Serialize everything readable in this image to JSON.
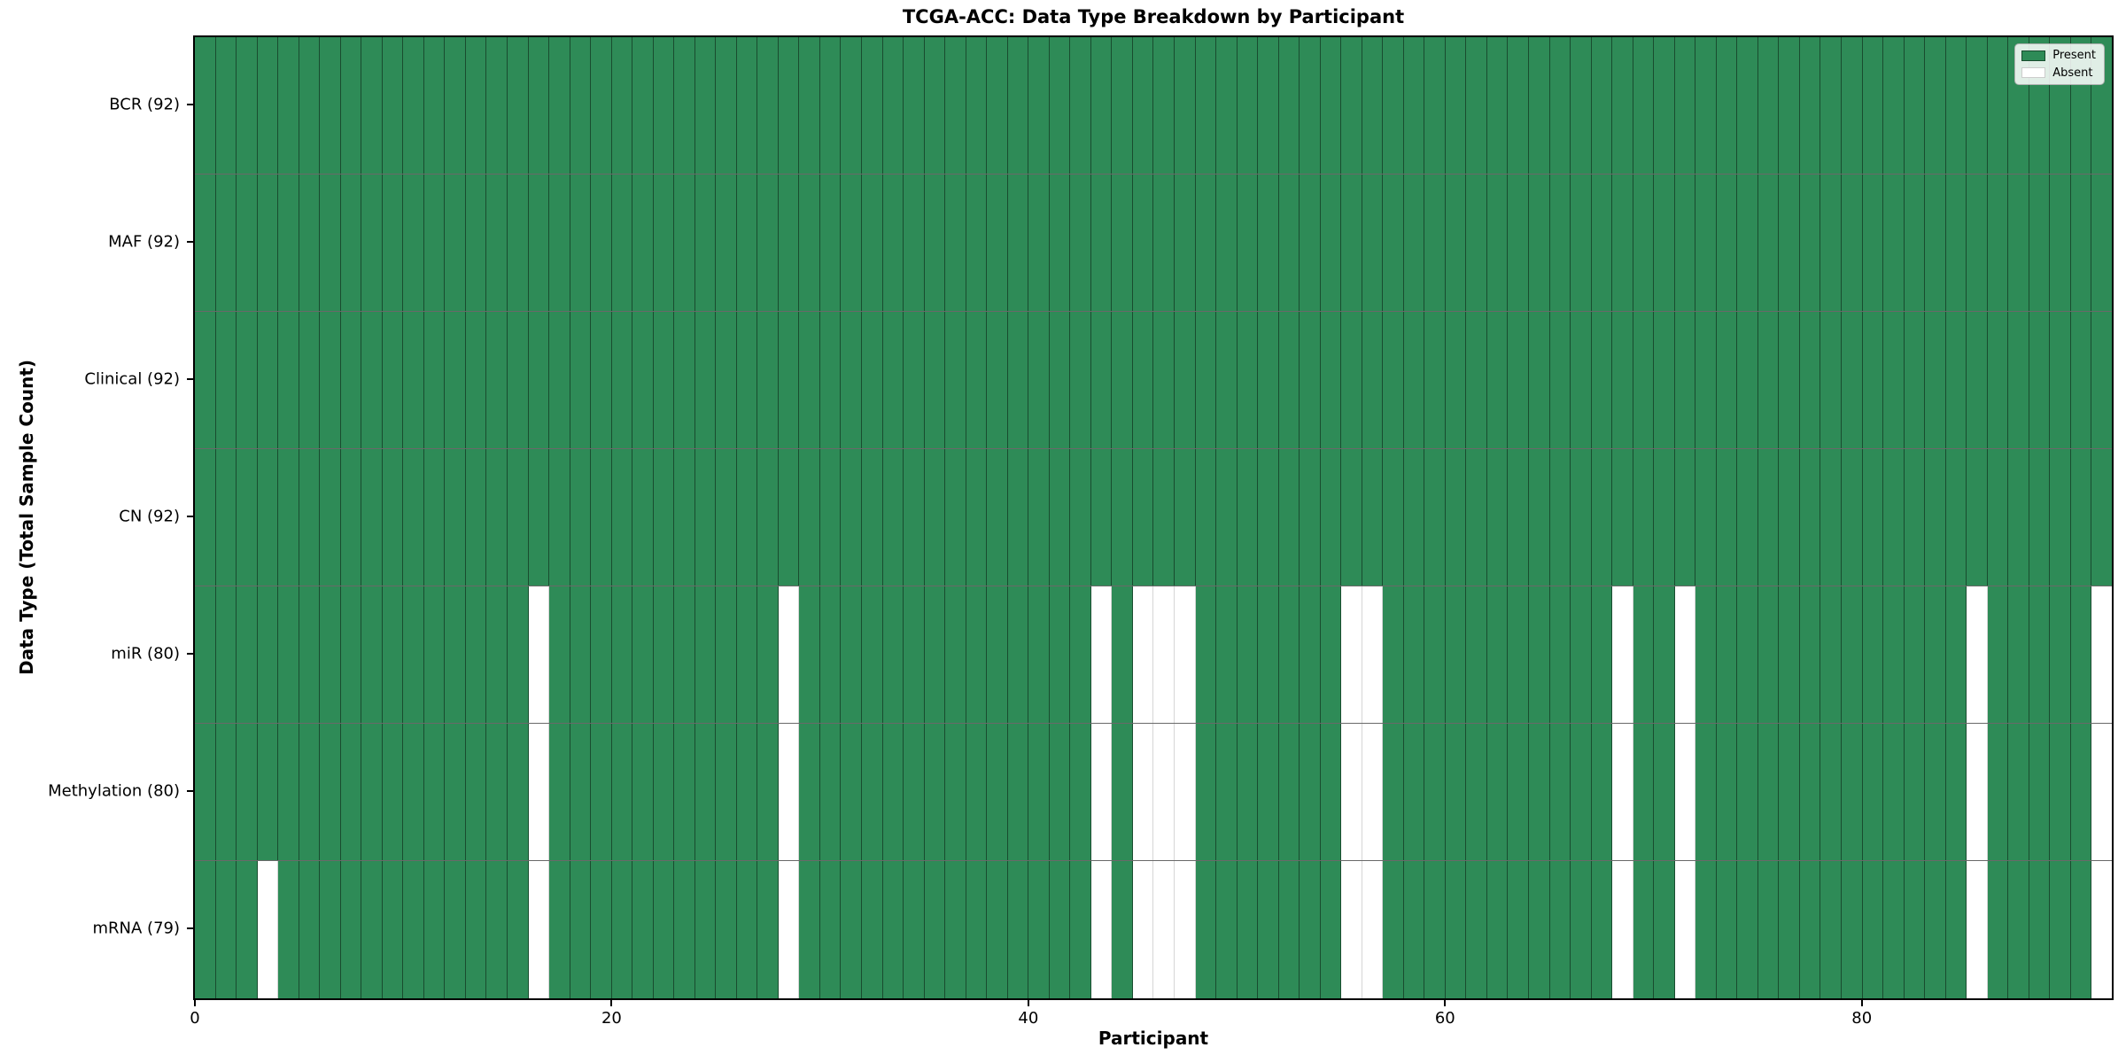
{
  "title": "TCGA-ACC: Data Type Breakdown by Participant",
  "x_axis": {
    "label": "Participant",
    "ticks": [
      0,
      20,
      40,
      60,
      80
    ],
    "max": 92
  },
  "y_axis": {
    "label": "Data Type (Total Sample Count)"
  },
  "legend": {
    "present_label": "Present",
    "absent_label": "Absent"
  },
  "colors": {
    "present": "#2E8B57",
    "absent": "#FFFFFF"
  },
  "chart_data": {
    "type": "heatmap",
    "title": "TCGA-ACC: Data Type Breakdown by Participant",
    "xlabel": "Participant",
    "ylabel": "Data Type (Total Sample Count)",
    "n_participants": 92,
    "x_ticks": [
      0,
      20,
      40,
      60,
      80
    ],
    "legend_position": "upper right",
    "grid": "cell-borders",
    "value_legend": {
      "present": "green cell",
      "absent": "white cell"
    },
    "rows": [
      {
        "label": "BCR (92)",
        "data_type": "BCR",
        "present_count": 92,
        "absent_participants": []
      },
      {
        "label": "MAF (92)",
        "data_type": "MAF",
        "present_count": 92,
        "absent_participants": []
      },
      {
        "label": "Clinical (92)",
        "data_type": "Clinical",
        "present_count": 92,
        "absent_participants": []
      },
      {
        "label": "CN (92)",
        "data_type": "CN",
        "present_count": 92,
        "absent_participants": []
      },
      {
        "label": "miR (80)",
        "data_type": "miR",
        "present_count": 80,
        "absent_participants": [
          16,
          28,
          43,
          45,
          46,
          47,
          55,
          56,
          68,
          71,
          85,
          91
        ]
      },
      {
        "label": "Methylation (80)",
        "data_type": "Methylation",
        "present_count": 80,
        "absent_participants": [
          16,
          28,
          43,
          45,
          46,
          47,
          55,
          56,
          68,
          71,
          85,
          91
        ]
      },
      {
        "label": "mRNA (79)",
        "data_type": "mRNA",
        "present_count": 79,
        "absent_participants": [
          3,
          16,
          28,
          43,
          45,
          46,
          47,
          55,
          56,
          68,
          71,
          85,
          91
        ]
      }
    ]
  }
}
